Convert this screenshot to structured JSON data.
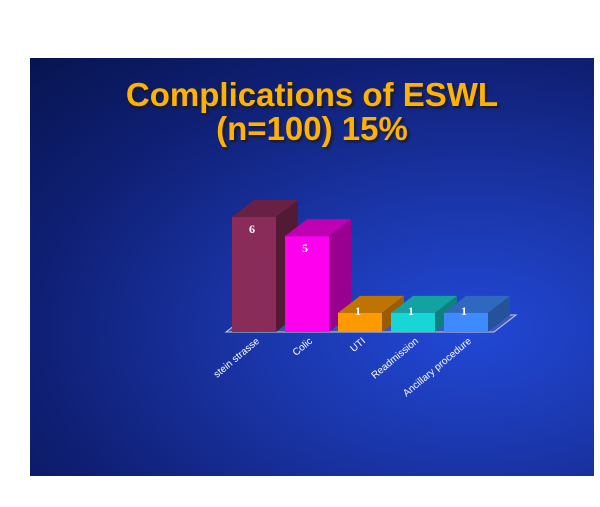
{
  "title": {
    "line1": "Complications of ESWL",
    "line2": "(n=100) 15%"
  },
  "chart_data": {
    "type": "bar",
    "title": "Complications of ESWL (n=100) 15%",
    "categories": [
      "stein strasse",
      "Colic",
      "UTI",
      "Readmission",
      "Ancillary procedure"
    ],
    "values": [
      6,
      5,
      1,
      1,
      1
    ],
    "colors": [
      "#8a2c5a",
      "#ff00ee",
      "#ff9900",
      "#19d6d6",
      "#3d8bff"
    ],
    "data_labels": true,
    "grid": false,
    "legend": "none",
    "three_d": true
  }
}
